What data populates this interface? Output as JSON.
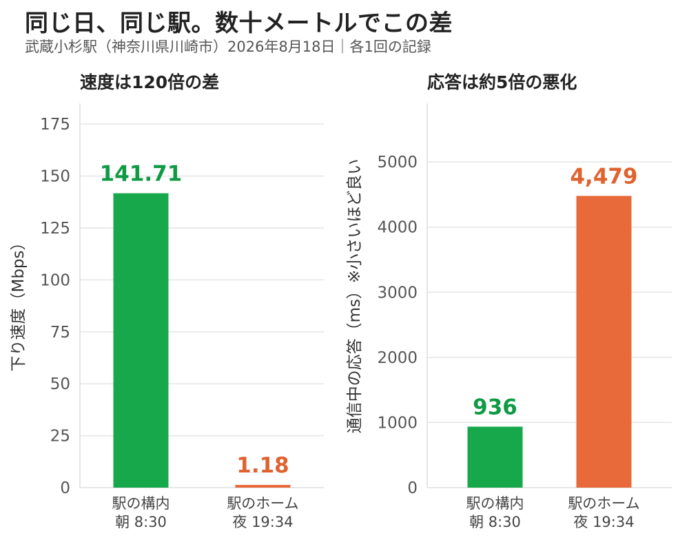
{
  "title": "同じ日、同じ駅。数十メートルでこの差",
  "subtitle": "武蔵小杉駅（神奈川県川崎市）2026年8月18日｜各1回の記録",
  "chart_data": [
    {
      "type": "bar",
      "title": "速度は120倍の差",
      "ylabel": "下り速度（Mbps）",
      "xlabel": "",
      "categories": [
        [
          "駅の構内",
          "朝 8:30"
        ],
        [
          "駅のホーム",
          "夜 19:34"
        ]
      ],
      "values": [
        141.71,
        1.18
      ],
      "value_labels": [
        "141.71",
        "1.18"
      ],
      "colors": [
        "#18a84c",
        "#e8693a"
      ],
      "label_colors": [
        "#0f9a45",
        "#e0622f"
      ],
      "ylim": [
        0,
        185
      ],
      "yticks": [
        0,
        25,
        50,
        75,
        100,
        125,
        150,
        175
      ],
      "grid": true
    },
    {
      "type": "bar",
      "title": "応答は約5倍の悪化",
      "ylabel": "通信中の応答（ms）※小さいほど良い",
      "xlabel": "",
      "categories": [
        [
          "駅の構内",
          "朝 8:30"
        ],
        [
          "駅のホーム",
          "夜 19:34"
        ]
      ],
      "values": [
        936,
        4479
      ],
      "value_labels": [
        "936",
        "4,479"
      ],
      "colors": [
        "#18a84c",
        "#e8693a"
      ],
      "label_colors": [
        "#0f9a45",
        "#e0622f"
      ],
      "ylim": [
        0,
        5900
      ],
      "yticks": [
        0,
        1000,
        2000,
        3000,
        4000,
        5000
      ],
      "grid": true
    }
  ]
}
